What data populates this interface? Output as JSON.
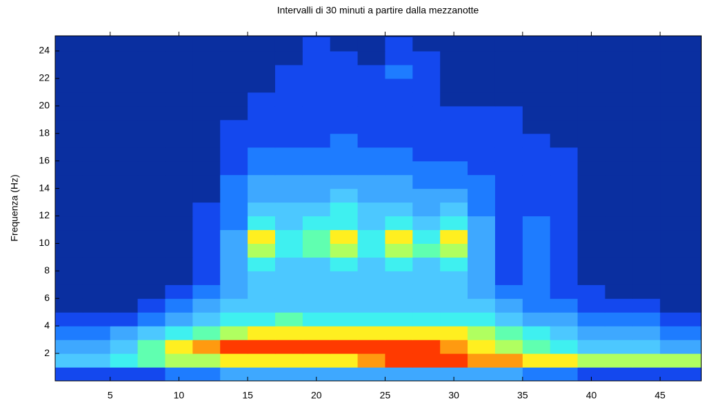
{
  "chart_data": {
    "type": "heatmap",
    "title": "Intervalli di 30 minuti a partire dalla mezzanotte",
    "y_label": "Frequenza (Hz)",
    "xlim": [
      1,
      48
    ],
    "ylim": [
      0,
      25.1
    ],
    "xticks": [
      5,
      10,
      15,
      20,
      25,
      30,
      35,
      40,
      45
    ],
    "yticks": [
      2,
      4,
      6,
      8,
      10,
      12,
      14,
      16,
      18,
      20,
      22,
      24
    ],
    "zlim": [
      0,
      10
    ],
    "colors": [
      "#0a2fa0",
      "#1448ee",
      "#1e7cff",
      "#3ea8ff",
      "#4cc8ff",
      "#3ff0f0",
      "#60ffb0",
      "#b0ff60",
      "#ffef20",
      "#ff9a10",
      "#ff3a00"
    ],
    "x": [
      2,
      4,
      6,
      8,
      10,
      12,
      14,
      16,
      18,
      20,
      22,
      24,
      26,
      28,
      30,
      32,
      34,
      36,
      38,
      40,
      42,
      44,
      46,
      48
    ],
    "y": [
      0.5,
      1.5,
      2.5,
      3.5,
      4.5,
      5.5,
      6.5,
      7.5,
      8.5,
      9.5,
      10.5,
      11.5,
      12.5,
      13.5,
      14.5,
      15.5,
      16.5,
      17.5,
      18.5,
      19.5,
      20.5,
      21.5,
      22.5,
      23.5,
      24.5
    ],
    "z": [
      [
        1,
        1,
        1,
        1,
        2,
        2,
        3,
        3,
        3,
        3,
        3,
        3,
        3,
        3,
        3,
        3,
        3,
        2,
        2,
        1,
        1,
        1,
        1,
        1
      ],
      [
        4,
        4,
        5,
        6,
        7,
        7,
        8,
        8,
        8,
        8,
        8,
        9,
        10,
        10,
        10,
        9,
        9,
        8,
        8,
        7,
        7,
        7,
        7,
        7
      ],
      [
        3,
        3,
        4,
        6,
        8,
        9,
        10,
        10,
        10,
        10,
        10,
        10,
        10,
        10,
        9,
        8,
        7,
        6,
        5,
        4,
        4,
        4,
        3,
        3
      ],
      [
        2,
        2,
        3,
        4,
        5,
        6,
        7,
        8,
        8,
        8,
        8,
        8,
        8,
        8,
        8,
        7,
        6,
        5,
        4,
        3,
        3,
        3,
        2,
        2
      ],
      [
        1,
        1,
        1,
        2,
        3,
        4,
        5,
        5,
        6,
        5,
        5,
        5,
        5,
        5,
        5,
        5,
        4,
        3,
        3,
        2,
        2,
        2,
        1,
        1
      ],
      [
        0,
        0,
        0,
        1,
        2,
        3,
        4,
        4,
        4,
        4,
        4,
        4,
        4,
        4,
        4,
        4,
        3,
        2,
        2,
        1,
        1,
        1,
        0,
        0
      ],
      [
        0,
        0,
        0,
        0,
        1,
        2,
        3,
        4,
        4,
        4,
        4,
        4,
        4,
        4,
        4,
        3,
        2,
        2,
        1,
        1,
        0,
        0,
        0,
        0
      ],
      [
        0,
        0,
        0,
        0,
        0,
        1,
        3,
        4,
        4,
        4,
        4,
        4,
        4,
        4,
        4,
        3,
        1,
        2,
        1,
        0,
        0,
        0,
        0,
        0
      ],
      [
        0,
        0,
        0,
        0,
        0,
        1,
        3,
        5,
        4,
        4,
        5,
        4,
        5,
        4,
        5,
        3,
        1,
        2,
        1,
        0,
        0,
        0,
        0,
        0
      ],
      [
        0,
        0,
        0,
        0,
        0,
        1,
        3,
        7,
        5,
        6,
        7,
        5,
        7,
        6,
        7,
        3,
        1,
        2,
        1,
        0,
        0,
        0,
        0,
        0
      ],
      [
        0,
        0,
        0,
        0,
        0,
        1,
        3,
        8,
        5,
        6,
        8,
        5,
        8,
        5,
        8,
        3,
        1,
        2,
        1,
        0,
        0,
        0,
        0,
        0
      ],
      [
        0,
        0,
        0,
        0,
        0,
        1,
        2,
        5,
        4,
        5,
        5,
        4,
        5,
        4,
        5,
        3,
        1,
        2,
        1,
        0,
        0,
        0,
        0,
        0
      ],
      [
        0,
        0,
        0,
        0,
        0,
        1,
        2,
        4,
        4,
        4,
        5,
        4,
        4,
        3,
        4,
        2,
        1,
        1,
        1,
        0,
        0,
        0,
        0,
        0
      ],
      [
        0,
        0,
        0,
        0,
        0,
        0,
        2,
        3,
        3,
        3,
        4,
        3,
        3,
        3,
        3,
        2,
        1,
        1,
        1,
        0,
        0,
        0,
        0,
        0
      ],
      [
        0,
        0,
        0,
        0,
        0,
        0,
        2,
        3,
        3,
        3,
        3,
        3,
        3,
        2,
        2,
        2,
        1,
        1,
        1,
        0,
        0,
        0,
        0,
        0
      ],
      [
        0,
        0,
        0,
        0,
        0,
        0,
        1,
        2,
        2,
        2,
        2,
        2,
        2,
        2,
        2,
        1,
        1,
        1,
        1,
        0,
        0,
        0,
        0,
        0
      ],
      [
        0,
        0,
        0,
        0,
        0,
        0,
        1,
        2,
        2,
        2,
        2,
        2,
        2,
        1,
        1,
        1,
        1,
        1,
        1,
        0,
        0,
        0,
        0,
        0
      ],
      [
        0,
        0,
        0,
        0,
        0,
        0,
        1,
        1,
        1,
        1,
        2,
        1,
        1,
        1,
        1,
        1,
        1,
        1,
        0,
        0,
        0,
        0,
        0,
        0
      ],
      [
        0,
        0,
        0,
        0,
        0,
        0,
        1,
        1,
        1,
        1,
        1,
        1,
        1,
        1,
        1,
        1,
        1,
        0,
        0,
        0,
        0,
        0,
        0,
        0
      ],
      [
        0,
        0,
        0,
        0,
        0,
        0,
        0,
        1,
        1,
        1,
        1,
        1,
        1,
        1,
        1,
        1,
        1,
        0,
        0,
        0,
        0,
        0,
        0,
        0
      ],
      [
        0,
        0,
        0,
        0,
        0,
        0,
        0,
        1,
        1,
        1,
        1,
        1,
        1,
        1,
        0,
        0,
        0,
        0,
        0,
        0,
        0,
        0,
        0,
        0
      ],
      [
        0,
        0,
        0,
        0,
        0,
        0,
        0,
        0,
        1,
        1,
        1,
        1,
        1,
        1,
        0,
        0,
        0,
        0,
        0,
        0,
        0,
        0,
        0,
        0
      ],
      [
        0,
        0,
        0,
        0,
        0,
        0,
        0,
        0,
        1,
        1,
        1,
        1,
        2,
        1,
        0,
        0,
        0,
        0,
        0,
        0,
        0,
        0,
        0,
        0
      ],
      [
        0,
        0,
        0,
        0,
        0,
        0,
        0,
        0,
        0,
        1,
        1,
        0,
        1,
        1,
        0,
        0,
        0,
        0,
        0,
        0,
        0,
        0,
        0,
        0
      ],
      [
        0,
        0,
        0,
        0,
        0,
        0,
        0,
        0,
        0,
        1,
        0,
        0,
        1,
        0,
        0,
        0,
        0,
        0,
        0,
        0,
        0,
        0,
        0,
        0
      ]
    ]
  }
}
